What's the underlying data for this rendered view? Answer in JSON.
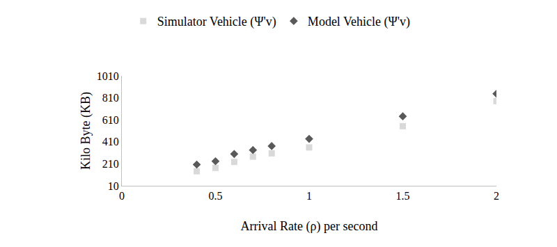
{
  "chart_data": {
    "type": "scatter",
    "x_label": "Arrival Rate (ρ) per second",
    "y_label": "Kilo Byte (KB)",
    "xlim": [
      0,
      2
    ],
    "xticks": [
      0,
      0.5,
      1,
      1.5,
      2
    ],
    "ylim": [
      10,
      1010
    ],
    "yticks": [
      10,
      210,
      410,
      610,
      810,
      1010
    ],
    "grid": false,
    "legend": "top",
    "series": [
      {
        "name": "Simulator Vehicle (Ψ'v)",
        "color": "#d9d9d9",
        "marker": "square",
        "x": [
          0.4,
          0.5,
          0.6,
          0.7,
          0.8,
          1,
          1.5,
          2
        ],
        "values": [
          142,
          173,
          227,
          275,
          305,
          359,
          552,
          780
        ]
      },
      {
        "name": "Model Vehicle (Ψ'v)",
        "color": "#595959",
        "marker": "diamond",
        "x": [
          0.4,
          0.5,
          0.6,
          0.7,
          0.8,
          1,
          1.5,
          2
        ],
        "values": [
          203,
          233,
          299,
          335,
          371,
          437,
          642,
          847
        ]
      }
    ]
  }
}
